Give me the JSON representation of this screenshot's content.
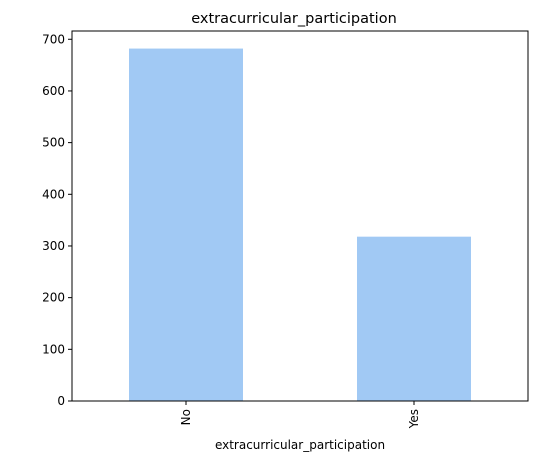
{
  "chart_data": {
    "type": "bar",
    "title": "extracurricular_participation",
    "xlabel": "extracurricular_participation",
    "ylabel": "",
    "categories": [
      "No",
      "Yes"
    ],
    "values": [
      682,
      318
    ],
    "ylim": [
      0,
      716
    ],
    "yticks": [
      0,
      100,
      200,
      300,
      400,
      500,
      600,
      700
    ],
    "bar_color": "#a1c9f4",
    "grid": false,
    "legend": "none"
  }
}
